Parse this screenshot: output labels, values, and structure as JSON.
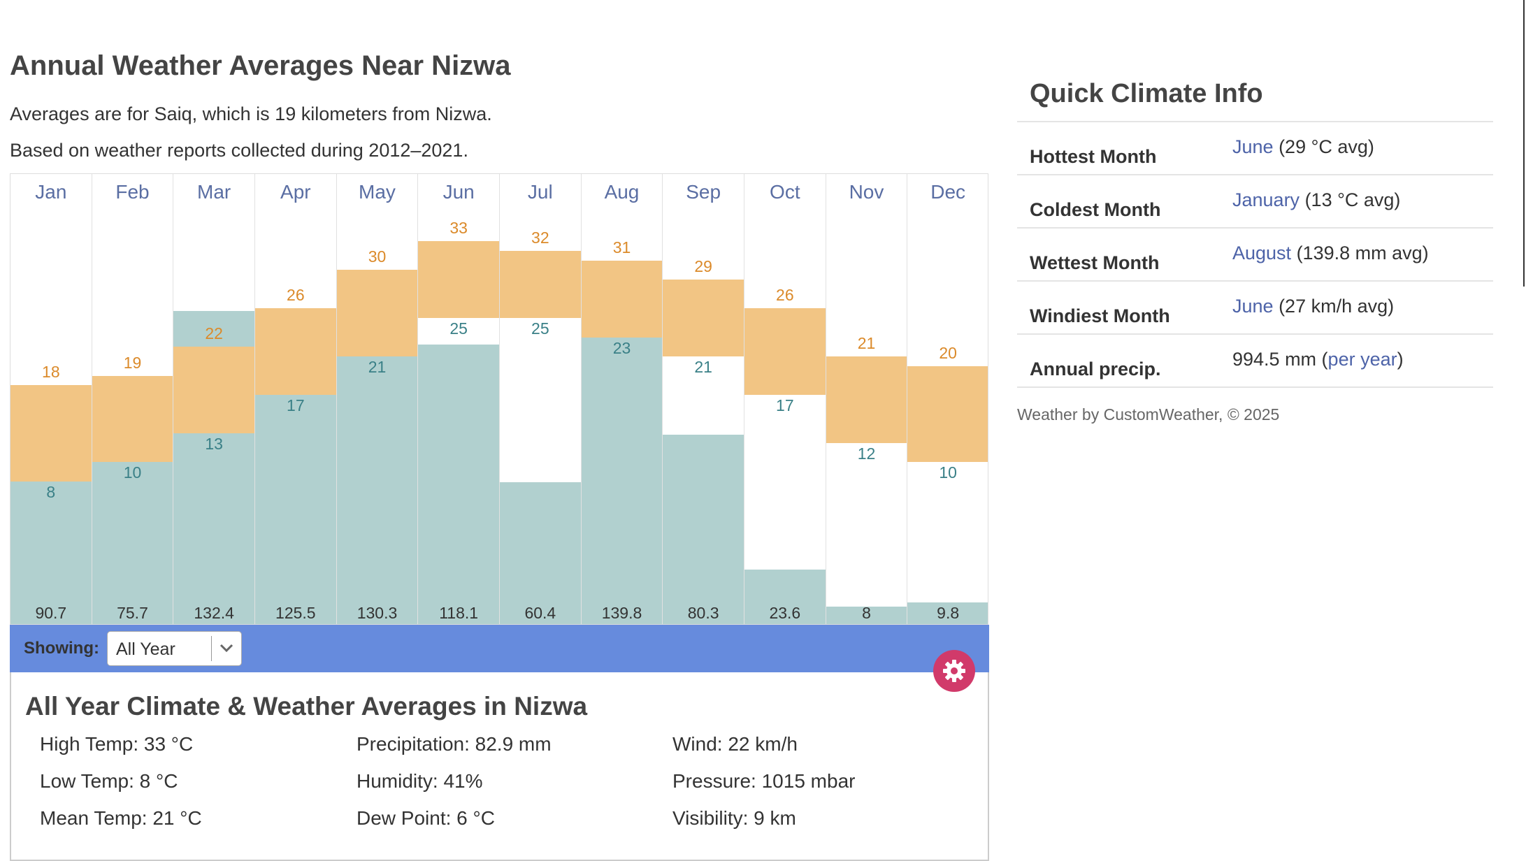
{
  "header": {
    "title": "Annual Weather Averages Near Nizwa",
    "subtitle_1": "Averages are for Saiq, which is 19 kilometers from Nizwa.",
    "subtitle_2": "Based on weather reports collected during 2012–2021."
  },
  "chart_data": {
    "type": "bar",
    "categories": [
      "Jan",
      "Feb",
      "Mar",
      "Apr",
      "May",
      "Jun",
      "Jul",
      "Aug",
      "Sep",
      "Oct",
      "Nov",
      "Dec"
    ],
    "series": [
      {
        "name": "",
        "values": [
          18,
          19,
          22,
          26,
          30,
          33,
          32,
          31,
          29,
          26,
          21,
          20
        ]
      },
      {
        "name": "",
        "values": [
          8,
          10,
          13,
          17,
          21,
          25,
          25,
          23,
          21,
          17,
          12,
          10
        ]
      },
      {
        "name": "",
        "values": [
          90.7,
          75.7,
          132.4,
          125.5,
          130.3,
          118.1,
          60.4,
          139.8,
          80.3,
          23.6,
          8,
          9.8
        ]
      }
    ],
    "temp_axis_range": [
      -7,
      40
    ],
    "precip_axis_range": [
      0,
      190
    ],
    "colors": {
      "temp_band": "#f2c584",
      "precip": "#b1d0cf",
      "high_label": "#db8a2a",
      "low_label": "#3a8087"
    },
    "grid": false,
    "legend": "none"
  },
  "toolbar": {
    "showing_label": "Showing:",
    "selected_period": "All Year",
    "settings_icon": "gear-icon",
    "bar_color": "#668bdd",
    "settings_color": "#d13a6a"
  },
  "summary": {
    "title": "All Year Climate & Weather Averages in Nizwa",
    "high_temp": "High Temp: 33 °C",
    "low_temp": "Low Temp: 8 °C",
    "mean_temp": "Mean Temp: 21 °C",
    "precipitation": "Precipitation: 82.9 mm",
    "humidity": "Humidity: 41%",
    "dew_point": "Dew Point: 6 °C",
    "wind": "Wind: 22 km/h",
    "pressure": "Pressure: 1015 mbar",
    "visibility": "Visibility: 9 km"
  },
  "quick_info": {
    "title": "Quick Climate Info",
    "rows": [
      {
        "label": "Hottest Month",
        "link": "June",
        "value": " (29 °C avg)"
      },
      {
        "label": "Coldest Month",
        "link": "January",
        "value": " (13 °C avg)"
      },
      {
        "label": "Wettest Month",
        "link": "August",
        "value": " (139.8 mm avg)"
      },
      {
        "label": "Windiest Month",
        "link": "June",
        "value": " (27 km/h avg)"
      },
      {
        "label": "Annual precip.",
        "value_prefix": "994.5 mm (",
        "link": "per year",
        "value_suffix": ")"
      }
    ],
    "credit": "Weather by CustomWeather, © 2025"
  }
}
